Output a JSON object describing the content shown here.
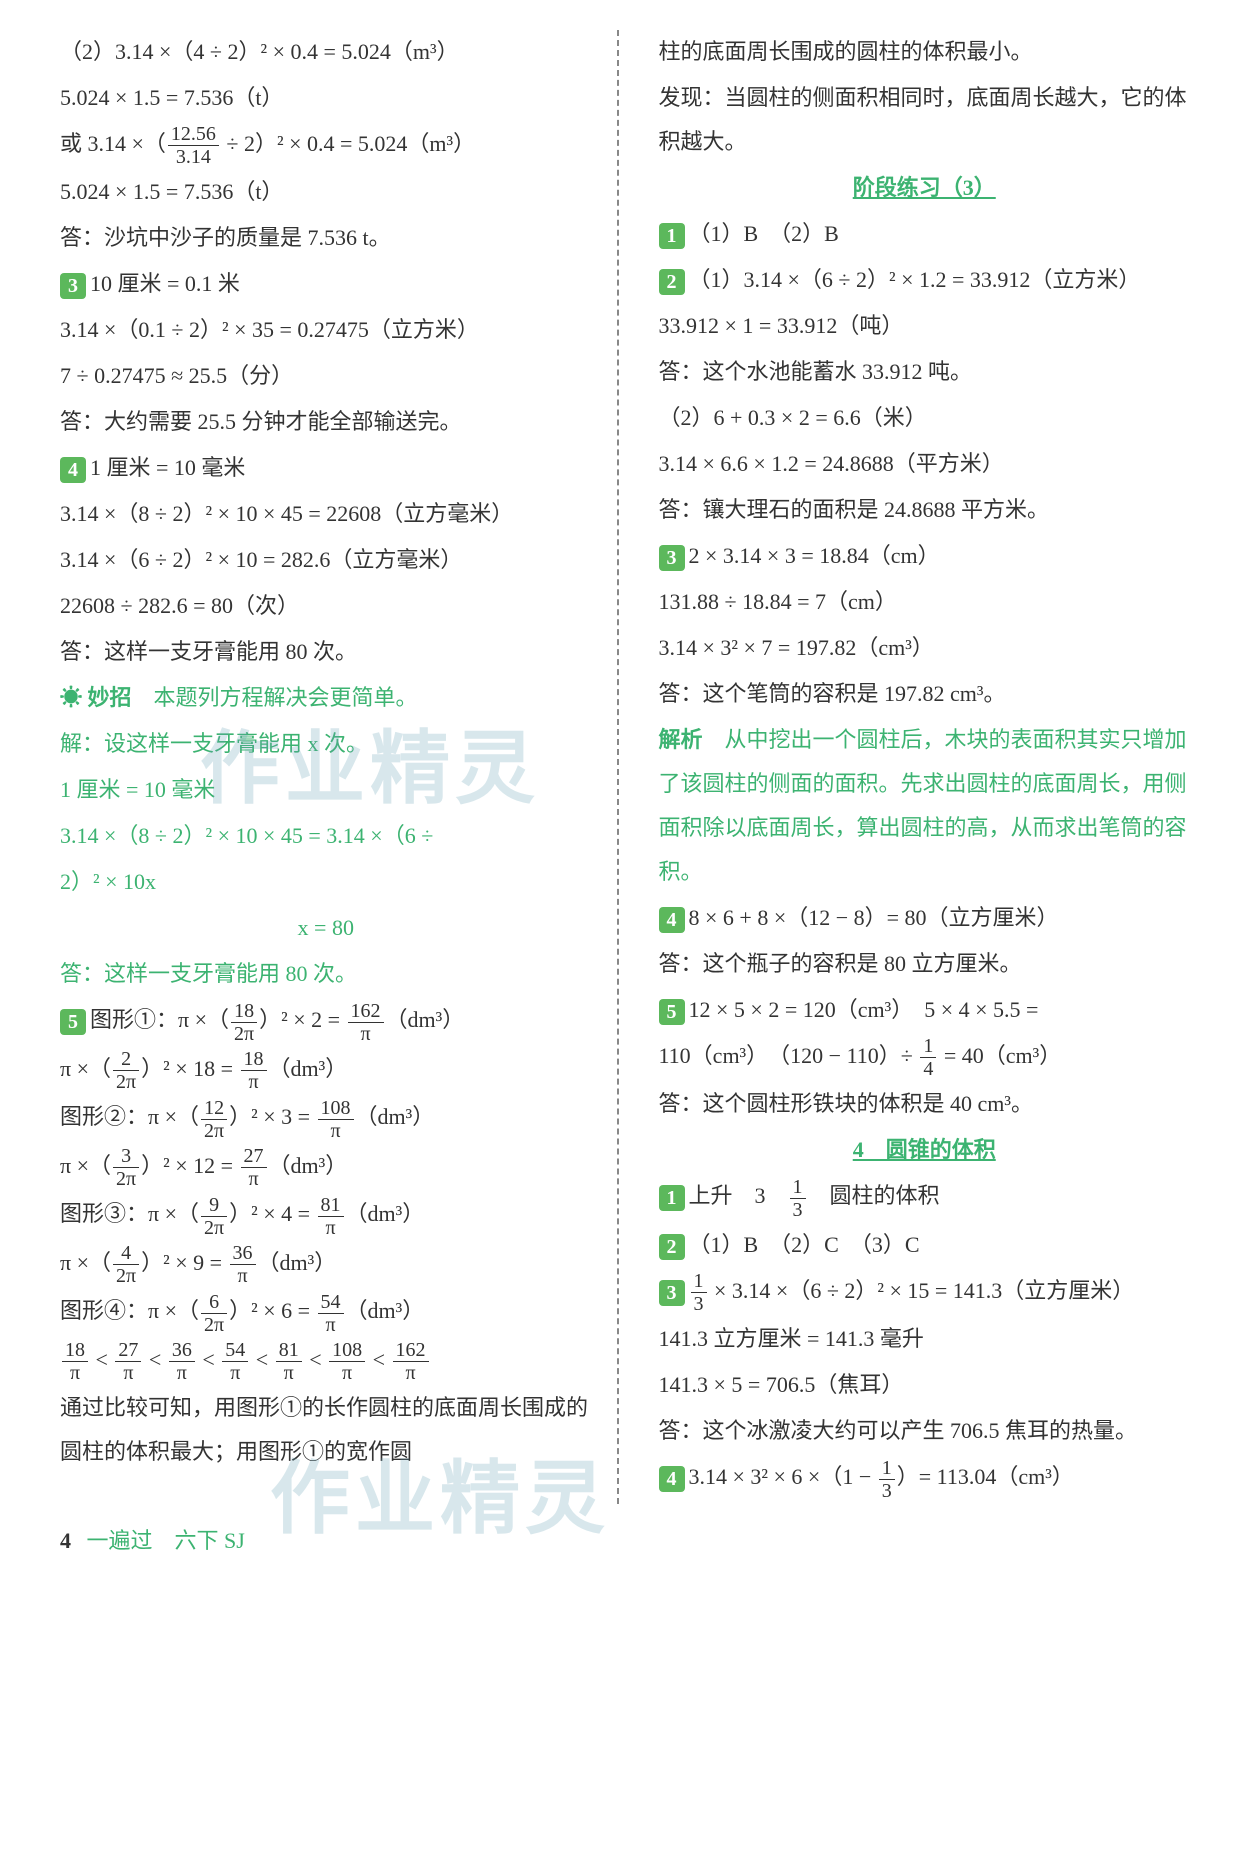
{
  "colors": {
    "badge_bg": "#5cb85c",
    "badge_text": "#ffffff",
    "green_text": "#3cb371",
    "body_text": "#333333",
    "watermark": "rgba(100,160,180,0.25)",
    "background": "#ffffff"
  },
  "watermark_text": "作业精灵",
  "left": {
    "l1": "（2）3.14 ×（4 ÷ 2）² × 0.4 = 5.024（m³）",
    "l2": "5.024 × 1.5 = 7.536（t）",
    "l3a": "或 3.14 ×（",
    "l3f_num": "12.56",
    "l3f_den": "3.14",
    "l3b": " ÷ 2）² × 0.4 = 5.024（m³）",
    "l4": "5.024 × 1.5 = 7.536（t）",
    "l5": "答：沙坑中沙子的质量是 7.536 t。",
    "b3": "3",
    "l6": "10 厘米 = 0.1 米",
    "l7": "3.14 ×（0.1 ÷ 2）² × 35 = 0.27475（立方米）",
    "l8": "7 ÷ 0.27475 ≈ 25.5（分）",
    "l9": "答：大约需要 25.5 分钟才能全部输送完。",
    "b4": "4",
    "l10": "1 厘米 = 10 毫米",
    "l11": "3.14 ×（8 ÷ 2）² × 10 × 45 = 22608（立方毫米）",
    "l12": "3.14 ×（6 ÷ 2）² × 10 = 282.6（立方毫米）",
    "l13": "22608 ÷ 282.6 = 80（次）",
    "l14": "答：这样一支牙膏能用 80 次。",
    "tip_icon": "☀ 妙招",
    "tip_text": "　本题列方程解决会更简单。",
    "g1": "解：设这样一支牙膏能用 x 次。",
    "g2": "1 厘米 = 10 毫米",
    "g3": "3.14 ×（8 ÷ 2）² × 10 × 45 = 3.14 ×（6 ÷ ",
    "g4": "2）² × 10x",
    "g5": "x = 80",
    "g6": "答：这样一支牙膏能用 80 次。",
    "b5": "5",
    "s5_1a": "图形①：π ×（",
    "f18": "18",
    "f2pi": "2π",
    "s5_1b": "）² × 2 = ",
    "f162": "162",
    "pi": "π",
    "dm3": "（dm³）",
    "s5_2a": "π ×（",
    "f2": "2",
    "s5_2b": "）² × 18 = ",
    "s5_3a": "图形②：π ×（",
    "f12": "12",
    "s5_3b": "）² × 3 = ",
    "f108": "108",
    "s5_4a": "π ×（",
    "f3": "3",
    "s5_4b": "）² × 12 = ",
    "f27": "27",
    "s5_5a": "图形③：π ×（",
    "f9": "9",
    "s5_5b": "）² × 4 = ",
    "f81": "81",
    "s5_6a": "π ×（",
    "f4": "4",
    "s5_6b": "）² × 9 = ",
    "f36": "36",
    "s5_7a": "图形④：π ×（",
    "f6": "6",
    "s5_7b": "）² × 6 = ",
    "f54": "54",
    "lt": " < ",
    "conclusion1": "通过比较可知，用图形①的长作圆柱的底面周长围成的圆柱的体积最大；用图形①的宽作圆"
  },
  "right": {
    "r1": "柱的底面周长围成的圆柱的体积最小。",
    "r2": "发现：当圆柱的侧面积相同时，底面周长越大，它的体积越大。",
    "section3": "阶段练习（3）",
    "rb1": "1",
    "r3": "（1）B　（2）B",
    "rb2": "2",
    "r4": "（1）3.14 ×（6 ÷ 2）² × 1.2 = 33.912（立方米）",
    "r5": "33.912 × 1 = 33.912（吨）",
    "r6": "答：这个水池能蓄水 33.912 吨。",
    "r7": "（2）6 + 0.3 × 2 = 6.6（米）",
    "r8": "3.14 × 6.6 × 1.2 = 24.8688（平方米）",
    "r9": "答：镶大理石的面积是 24.8688 平方米。",
    "rb3": "3",
    "r10": "2 × 3.14 × 3 = 18.84（cm）",
    "r11": "131.88 ÷ 18.84 = 7（cm）",
    "r12": "3.14 × 3² × 7 = 197.82（cm³）",
    "r13": "答：这个笔筒的容积是 197.82 cm³。",
    "analysis": "解析",
    "r14": "　从中挖出一个圆柱后，木块的表面积其实只增加了该圆柱的侧面的面积。先求出圆柱的底面周长，用侧面积除以底面周长，算出圆柱的高，从而求出笔筒的容积。",
    "rb4": "4",
    "r15": "8 × 6 + 8 ×（12 − 8）= 80（立方厘米）",
    "r16": "答：这个瓶子的容积是 80 立方厘米。",
    "rb5": "5",
    "r17": "12 × 5 × 2 = 120（cm³）　5 × 4 × 5.5 = ",
    "r18a": "110（cm³）　（120 − 110）÷ ",
    "f1": "1",
    "f4d": "4",
    "r18b": " = 40（cm³）",
    "r19": "答：这个圆柱形铁块的体积是 40 cm³。",
    "section4": "4　圆锥的体积",
    "cb1": "1",
    "c1a": "上升　3　",
    "f1b": "1",
    "f3b": "3",
    "c1b": "　圆柱的体积",
    "cb2": "2",
    "c2": "（1）B　（2）C　（3）C",
    "cb3": "3",
    "c3a": " × 3.14 ×（6 ÷ 2）² × 15 = 141.3（立方厘米）",
    "c4": "141.3 立方厘米 = 141.3 毫升",
    "c5": "141.3 × 5 = 706.5（焦耳）",
    "c6": "答：这个冰激凌大约可以产生 706.5 焦耳的热量。",
    "cb4": "4",
    "c7a": "3.14 × 3² × 6 ×（1 − ",
    "c7b": "）= 113.04（cm³）"
  },
  "footer": {
    "page": "4",
    "book": "一遍过　六下 SJ"
  }
}
